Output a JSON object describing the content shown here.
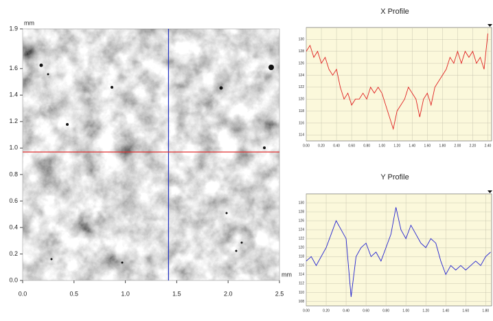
{
  "chart_data": [
    {
      "type": "image",
      "xlabel": "mm",
      "ylabel": "mm",
      "xlim": [
        0,
        2.5
      ],
      "ylim": [
        0,
        1.9
      ],
      "xticks": [
        {
          "value": 0,
          "label": "0.0"
        },
        0.5,
        {
          "value": 1,
          "label": "1.0"
        },
        1.5,
        {
          "value": 2,
          "label": "2.0"
        },
        2.5
      ],
      "yticks": [
        {
          "value": 0,
          "label": "0.0"
        },
        0.2,
        0.4,
        0.6,
        0.8,
        {
          "value": 1,
          "label": "1.0"
        },
        1.2,
        1.4,
        1.6,
        1.9
      ],
      "cursor_x": 1.42,
      "cursor_y": 0.97,
      "cursor_x_color": "#2030c0",
      "cursor_y_color": "#e03030"
    },
    {
      "type": "line",
      "title": "X Profile",
      "x": [
        0,
        0.05,
        0.1,
        0.15,
        0.2,
        0.25,
        0.3,
        0.35,
        0.4,
        0.45,
        0.5,
        0.55,
        0.6,
        0.65,
        0.7,
        0.75,
        0.8,
        0.85,
        0.9,
        0.95,
        1,
        1.05,
        1.1,
        1.15,
        1.2,
        1.25,
        1.3,
        1.35,
        1.4,
        1.45,
        1.5,
        1.55,
        1.6,
        1.65,
        1.7,
        1.75,
        1.8,
        1.85,
        1.9,
        1.95,
        2,
        2.05,
        2.1,
        2.15,
        2.2,
        2.25,
        2.3,
        2.35,
        2.4
      ],
      "series": [
        {
          "color": "#e02020",
          "values": [
            128,
            129,
            127,
            128,
            126,
            127,
            125,
            124,
            125,
            122,
            120,
            121,
            119,
            120,
            120,
            121,
            120,
            122,
            121,
            122,
            121,
            119,
            117,
            115,
            118,
            119,
            120,
            122,
            121,
            120,
            117,
            120,
            121,
            119,
            122,
            123,
            124,
            125,
            127,
            126,
            128,
            126,
            128,
            127,
            128,
            126,
            127,
            125,
            131
          ]
        }
      ],
      "xlim": [
        0,
        2.45
      ],
      "ylim": [
        113,
        132
      ],
      "xticks": [
        {
          "value": 0,
          "label": "0.00"
        },
        {
          "value": 0.2,
          "label": "0.20"
        },
        {
          "value": 0.4,
          "label": "0.40"
        },
        {
          "value": 0.6,
          "label": "0.60"
        },
        {
          "value": 0.8,
          "label": "0.80"
        },
        {
          "value": 1,
          "label": "1.00"
        },
        {
          "value": 1.2,
          "label": "1.20"
        },
        {
          "value": 1.4,
          "label": "1.40"
        },
        {
          "value": 1.6,
          "label": "1.60"
        },
        {
          "value": 1.8,
          "label": "1.80"
        },
        {
          "value": 2,
          "label": "2.00"
        },
        {
          "value": 2.2,
          "label": "2.20"
        },
        {
          "value": 2.4,
          "label": "2.40"
        }
      ],
      "yticks": [
        114,
        116,
        118,
        120,
        122,
        124,
        126,
        128,
        130
      ],
      "grid": true
    },
    {
      "type": "line",
      "title": "Y Profile",
      "x": [
        0,
        0.05,
        0.1,
        0.15,
        0.2,
        0.25,
        0.3,
        0.35,
        0.4,
        0.45,
        0.5,
        0.55,
        0.6,
        0.65,
        0.7,
        0.75,
        0.8,
        0.85,
        0.9,
        0.95,
        1,
        1.05,
        1.1,
        1.15,
        1.2,
        1.25,
        1.3,
        1.35,
        1.4,
        1.45,
        1.5,
        1.55,
        1.6,
        1.65,
        1.7,
        1.75,
        1.8,
        1.85
      ],
      "series": [
        {
          "color": "#2020d0",
          "values": [
            117,
            118,
            116,
            118,
            120,
            123,
            126,
            124,
            122,
            109,
            118,
            120,
            121,
            118,
            119,
            117,
            120,
            123,
            129,
            124,
            122,
            125,
            123,
            121,
            120,
            122,
            121,
            117,
            114,
            116,
            115,
            116,
            115,
            116,
            117,
            116,
            118,
            119
          ]
        }
      ],
      "xlim": [
        0,
        1.86
      ],
      "ylim": [
        107,
        132
      ],
      "xticks": [
        {
          "value": 0,
          "label": "0.00"
        },
        {
          "value": 0.2,
          "label": "0.20"
        },
        {
          "value": 0.4,
          "label": "0.40"
        },
        {
          "value": 0.6,
          "label": "0.60"
        },
        {
          "value": 0.8,
          "label": "0.80"
        },
        {
          "value": 1,
          "label": "1.00"
        },
        {
          "value": 1.2,
          "label": "1.20"
        },
        {
          "value": 1.4,
          "label": "1.40"
        },
        {
          "value": 1.6,
          "label": "1.60"
        },
        {
          "value": 1.8,
          "label": "1.80"
        }
      ],
      "yticks": [
        108,
        110,
        112,
        114,
        116,
        118,
        120,
        122,
        124,
        126,
        128,
        130
      ],
      "grid": true
    }
  ]
}
